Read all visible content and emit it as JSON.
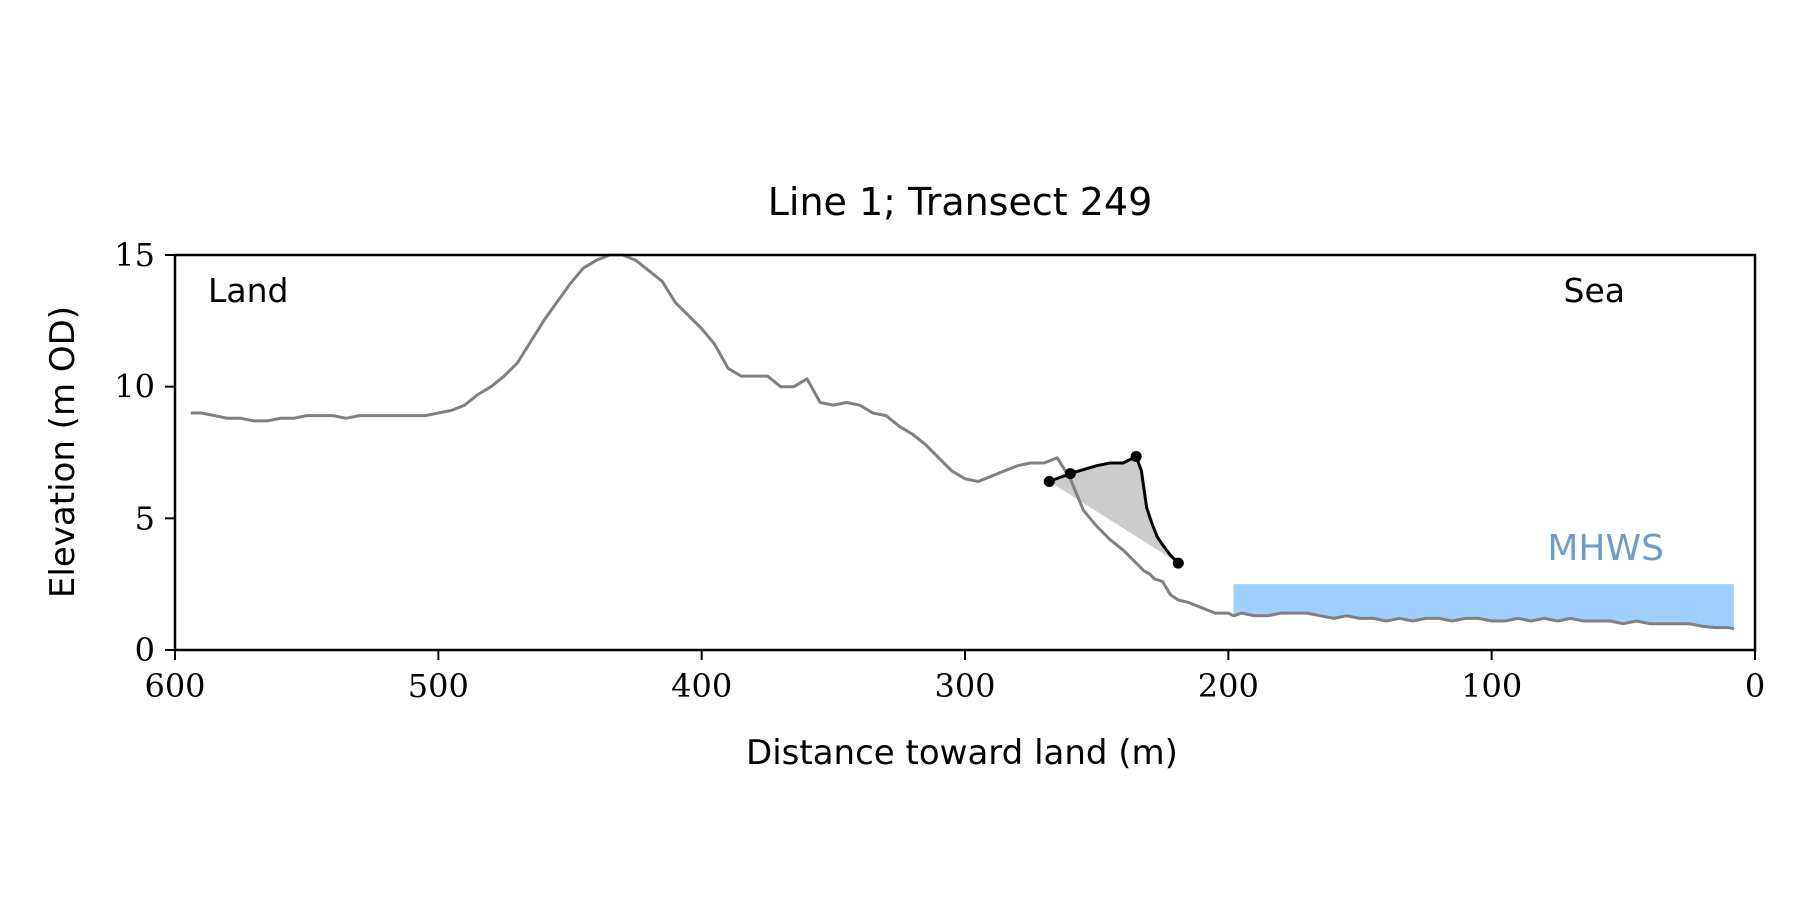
{
  "chart_data": {
    "type": "line",
    "title": "Line 1; Transect 249",
    "xlabel": "Distance toward land (m)",
    "ylabel": "Elevation (m OD)",
    "xlim": [
      600,
      0
    ],
    "ylim": [
      0,
      15
    ],
    "x_ticks": [
      "600",
      "500",
      "400",
      "300",
      "200",
      "100",
      "0"
    ],
    "y_ticks": [
      "0",
      "5",
      "10",
      "15"
    ],
    "grid": false,
    "annotations": {
      "land": "Land",
      "sea": "Sea"
    },
    "colors": {
      "profile": "#808080",
      "highlight": "#000000",
      "fill": "#cccccc",
      "mhws": "#9fcfff",
      "mhws_label": "#6a9ccc"
    },
    "mhws": {
      "label": "MHWS",
      "level": 2.5,
      "x_start": 198,
      "x_end": 8
    },
    "profile": {
      "x": [
        594,
        590,
        585,
        580,
        575,
        570,
        565,
        560,
        555,
        550,
        545,
        540,
        535,
        530,
        525,
        520,
        515,
        510,
        505,
        500,
        495,
        490,
        485,
        480,
        475,
        470,
        465,
        460,
        455,
        450,
        445,
        440,
        435,
        430,
        425,
        420,
        415,
        410,
        405,
        400,
        395,
        390,
        385,
        380,
        375,
        370,
        365,
        360,
        355,
        350,
        345,
        340,
        335,
        330,
        325,
        320,
        315,
        310,
        305,
        300,
        295,
        290,
        285,
        280,
        275,
        270,
        265,
        260,
        255,
        250,
        245,
        240,
        235,
        232,
        230,
        228,
        225,
        222,
        219,
        215,
        210,
        205,
        200,
        198,
        195,
        190,
        185,
        180,
        175,
        170,
        165,
        160,
        155,
        150,
        145,
        140,
        135,
        130,
        125,
        120,
        115,
        110,
        105,
        100,
        95,
        90,
        85,
        80,
        75,
        70,
        65,
        60,
        55,
        50,
        45,
        40,
        35,
        30,
        25,
        20,
        15,
        10,
        8
      ],
      "y": [
        9.0,
        9.0,
        8.9,
        8.8,
        8.8,
        8.7,
        8.7,
        8.8,
        8.8,
        8.9,
        8.9,
        8.9,
        8.8,
        8.9,
        8.9,
        8.9,
        8.9,
        8.9,
        8.9,
        9.0,
        9.1,
        9.3,
        9.7,
        10.0,
        10.4,
        10.9,
        11.7,
        12.5,
        13.2,
        13.9,
        14.5,
        14.8,
        15.0,
        15.0,
        14.8,
        14.4,
        14.0,
        13.2,
        12.7,
        12.2,
        11.6,
        10.7,
        10.4,
        10.4,
        10.4,
        10.0,
        10.0,
        10.3,
        9.4,
        9.3,
        9.4,
        9.3,
        9.0,
        8.9,
        8.5,
        8.2,
        7.8,
        7.3,
        6.8,
        6.5,
        6.4,
        6.6,
        6.8,
        7.0,
        7.1,
        7.1,
        7.3,
        6.5,
        5.3,
        4.7,
        4.2,
        3.8,
        3.3,
        3.0,
        2.9,
        2.7,
        2.6,
        2.1,
        1.9,
        1.8,
        1.6,
        1.4,
        1.4,
        1.3,
        1.4,
        1.3,
        1.3,
        1.4,
        1.4,
        1.4,
        1.3,
        1.2,
        1.3,
        1.2,
        1.2,
        1.1,
        1.2,
        1.1,
        1.2,
        1.2,
        1.1,
        1.2,
        1.2,
        1.1,
        1.1,
        1.2,
        1.1,
        1.2,
        1.1,
        1.2,
        1.1,
        1.1,
        1.1,
        1.0,
        1.1,
        1.0,
        1.0,
        1.0,
        1.0,
        0.9,
        0.85,
        0.85,
        0.8
      ]
    },
    "highlight": {
      "x": [
        268,
        264,
        260,
        255,
        250,
        245,
        240,
        237,
        235,
        233,
        231,
        229,
        227,
        225,
        222,
        219
      ],
      "y": [
        6.4,
        6.55,
        6.7,
        6.85,
        7.0,
        7.1,
        7.1,
        7.25,
        7.35,
        6.8,
        5.4,
        4.8,
        4.3,
        4.0,
        3.6,
        3.3
      ],
      "markers": [
        [
          268,
          6.4
        ],
        [
          260,
          6.7
        ],
        [
          235,
          7.35
        ],
        [
          219,
          3.3
        ]
      ]
    }
  }
}
